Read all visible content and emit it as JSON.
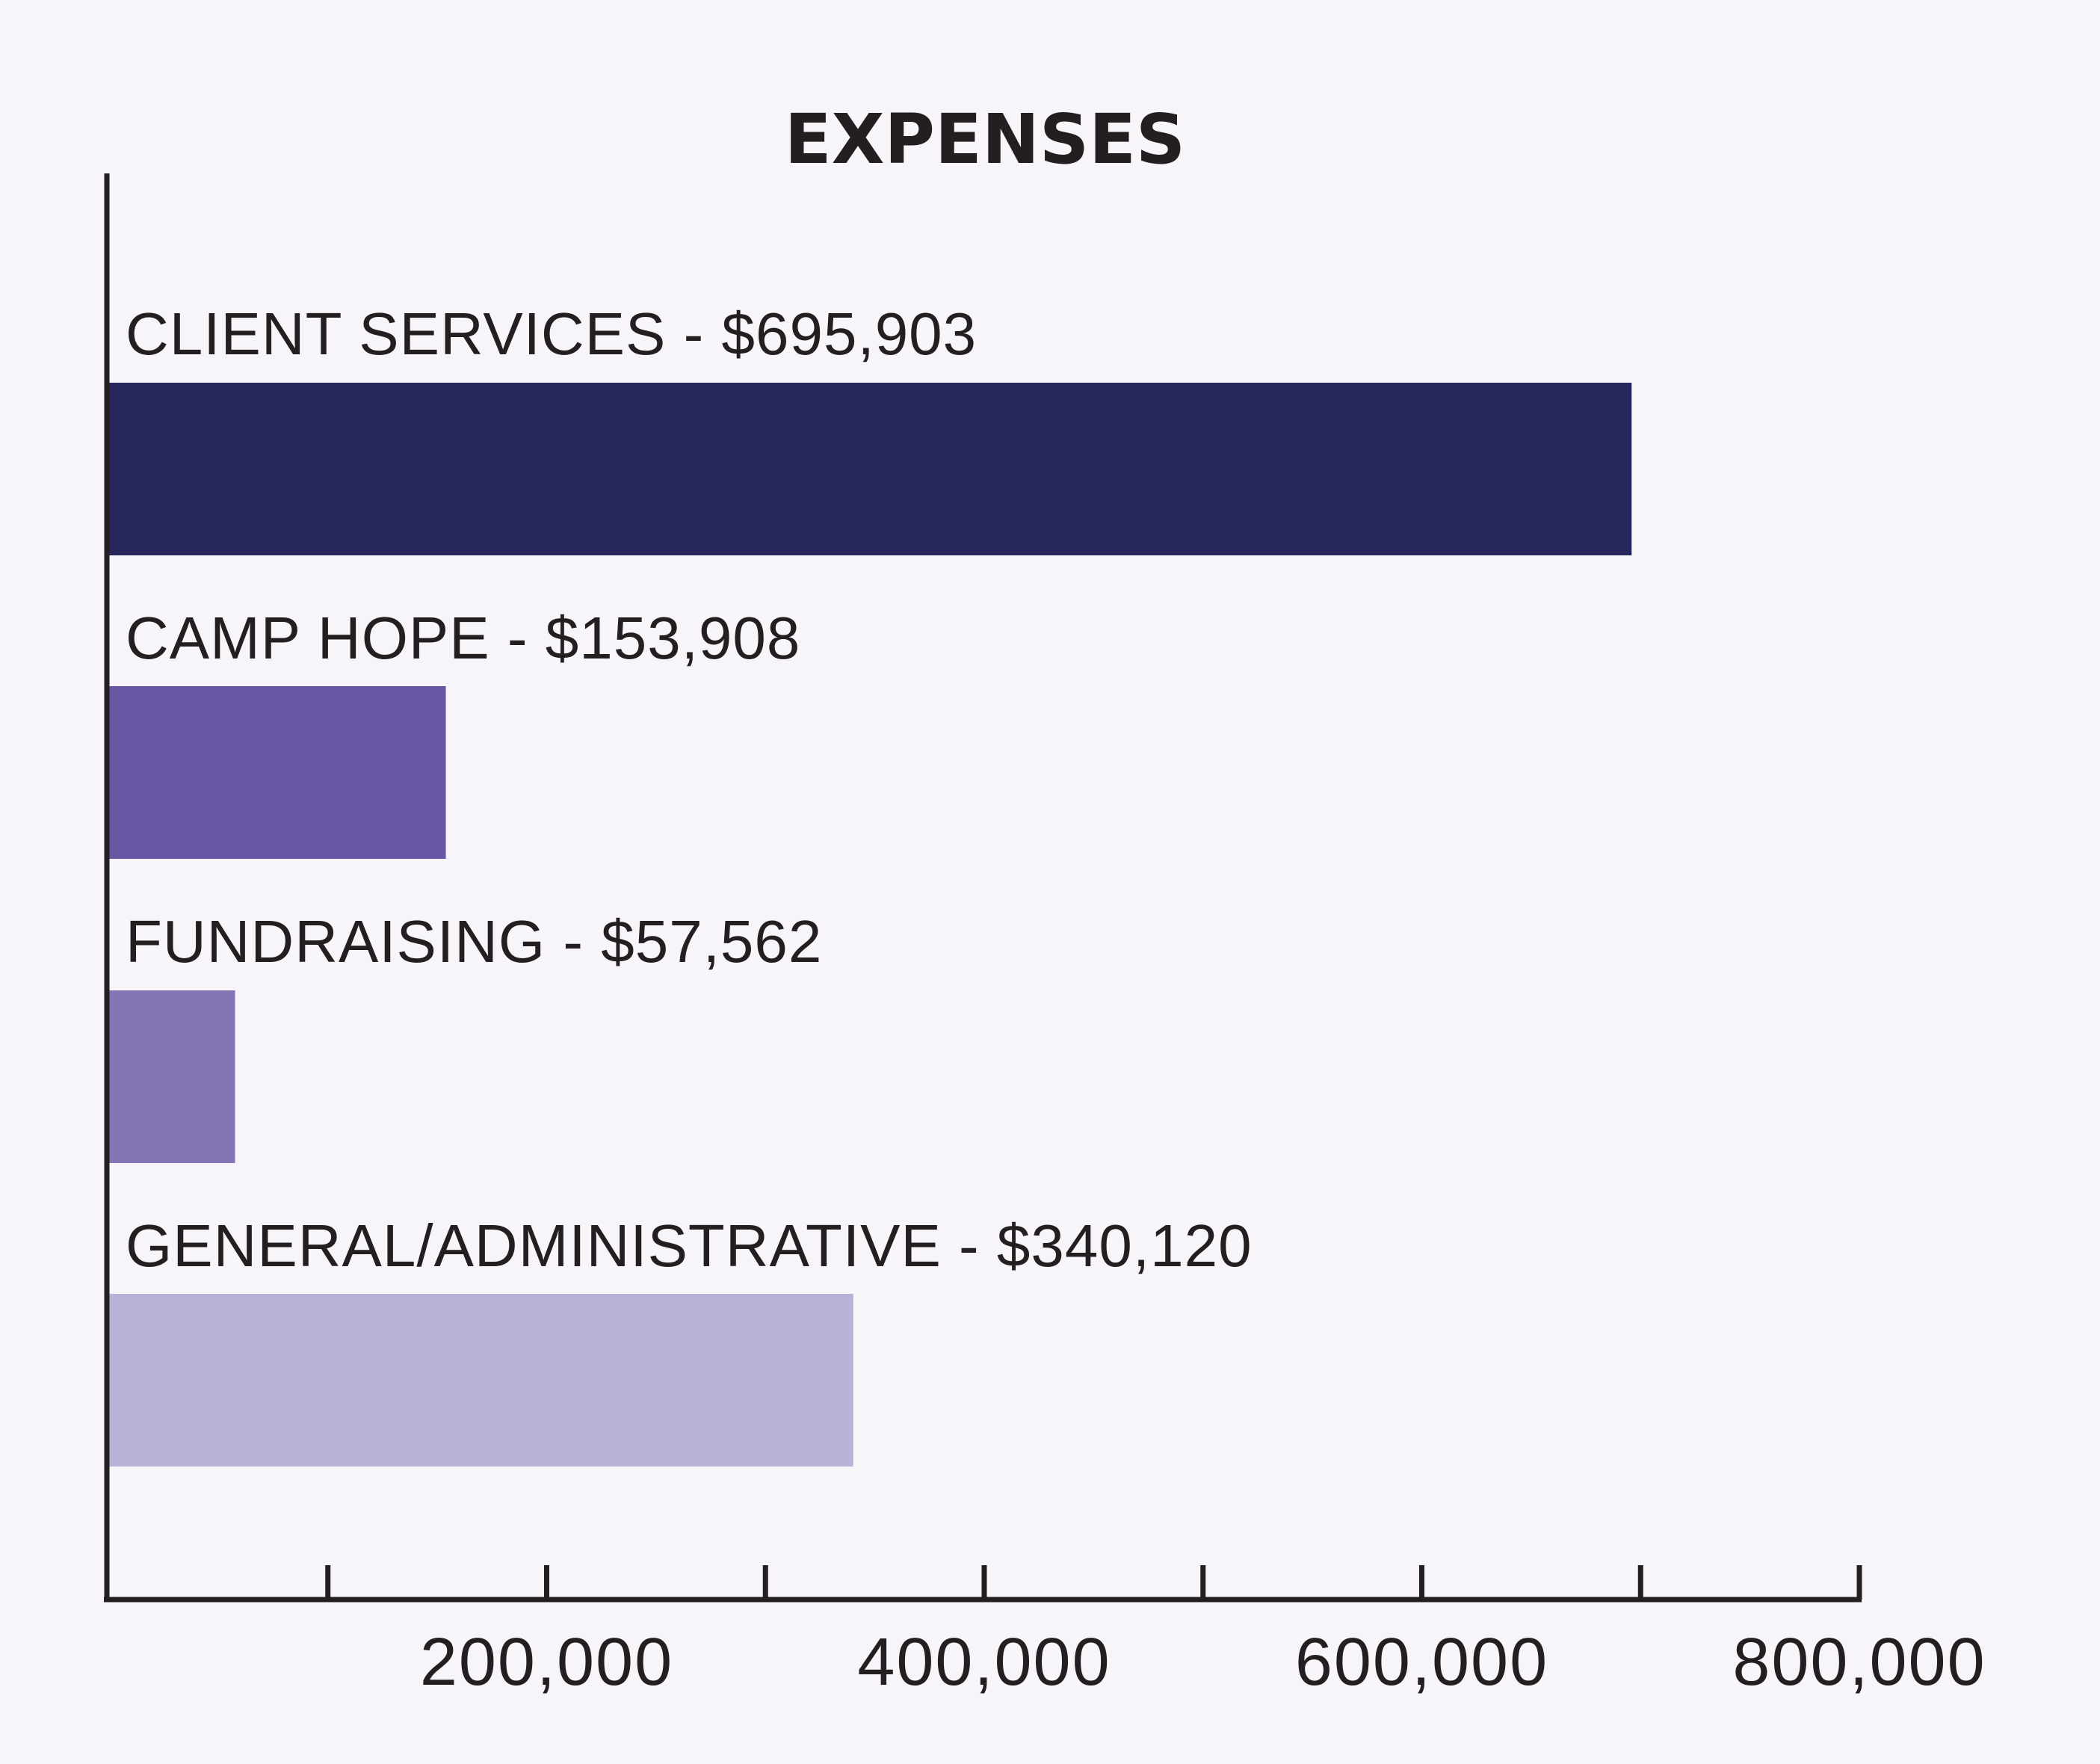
{
  "chart_data": {
    "type": "bar",
    "orientation": "horizontal",
    "title": "EXPENSES",
    "categories": [
      "CLIENT SERVICES",
      "CAMP HOPE",
      "FUNDRAISING",
      "GENERAL/ADMINISTRATIVE"
    ],
    "values": [
      695903,
      153908,
      57562,
      340120
    ],
    "labels": [
      "CLIENT SERVICES - $695,903",
      "CAMP HOPE - $153,908",
      "FUNDRAISING - $57,562",
      "GENERAL/ADMINISTRATIVE - $340,120"
    ],
    "colors": [
      "#26255c",
      "#6858a3",
      "#8475b5",
      "#b8b2d6"
    ],
    "xlim": [
      0,
      800000
    ],
    "minor_tick_step": 100000,
    "tick_values": [
      200000,
      400000,
      600000,
      800000
    ],
    "tick_labels": [
      "200,000",
      "400,000",
      "600,000",
      "800,000"
    ],
    "xlabel": "",
    "ylabel": "",
    "grid": false,
    "legend": "none"
  }
}
